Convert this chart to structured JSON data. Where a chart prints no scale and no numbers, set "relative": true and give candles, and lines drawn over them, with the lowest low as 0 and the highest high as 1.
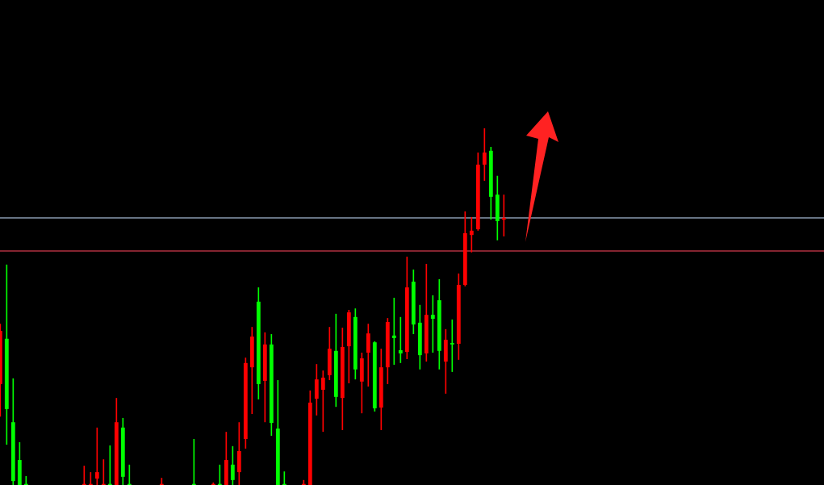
{
  "chart_data": {
    "type": "candlestick",
    "relative": true,
    "categories": [
      null,
      null,
      null,
      null,
      null,
      null,
      null,
      null,
      null,
      null,
      null,
      null,
      null,
      null,
      null,
      null,
      null,
      null,
      null,
      null,
      null,
      null,
      null,
      null,
      null,
      null,
      null,
      null,
      null,
      null,
      null,
      null,
      null,
      null,
      null,
      null,
      null,
      null,
      null,
      null,
      null,
      null,
      null,
      null,
      null,
      null,
      null,
      null,
      null,
      null,
      null,
      null,
      null,
      null,
      null,
      null,
      null,
      null,
      null,
      null,
      null,
      null,
      null,
      null,
      null,
      null,
      null,
      null,
      null,
      null,
      null,
      null,
      null,
      null,
      null,
      null,
      null,
      null,
      null
    ],
    "ohlc": [
      [
        0.283,
        0.452,
        0.192,
        0.432
      ],
      [
        0.41,
        0.618,
        0.113,
        0.213
      ],
      [
        0.176,
        0.299,
        0,
        0.011
      ],
      [
        0.07,
        0.12,
        0,
        0
      ],
      [
        0,
        0.025,
        0,
        0
      ],
      null,
      null,
      null,
      null,
      null,
      null,
      null,
      null,
      [
        0,
        0.054,
        0,
        0
      ],
      [
        0,
        0.036,
        0,
        0
      ],
      [
        0.018,
        0.161,
        0,
        0.036
      ],
      [
        0,
        0.072,
        0,
        0
      ],
      [
        0,
        0.111,
        0,
        0
      ],
      [
        0,
        0.244,
        0,
        0.176
      ],
      [
        0.161,
        0.188,
        0,
        0.023
      ],
      [
        0,
        0.057,
        0,
        0
      ],
      null,
      null,
      null,
      null,
      [
        0,
        0.02,
        0,
        0
      ],
      null,
      null,
      null,
      null,
      [
        0,
        0.129,
        0,
        0
      ],
      null,
      null,
      [
        0,
        0.007,
        0,
        0
      ],
      [
        0,
        0.057,
        0,
        0
      ],
      [
        0,
        0.149,
        0,
        0.07
      ],
      [
        0.057,
        0.109,
        0,
        0.014
      ],
      [
        0.036,
        0.176,
        0,
        0.095
      ],
      [
        0.129,
        0.357,
        0.102,
        0.342
      ],
      [
        0.33,
        0.443,
        0.199,
        0.416
      ],
      [
        0.514,
        0.554,
        0.24,
        0.283
      ],
      [
        0.292,
        0.428,
        0.176,
        0.394
      ],
      [
        0.394,
        0.423,
        0.138,
        0.174
      ],
      [
        0.158,
        0.294,
        0,
        0
      ],
      [
        0,
        0.038,
        0,
        0
      ],
      null,
      null,
      [
        0,
        0.014,
        0,
        0
      ],
      [
        0,
        0.265,
        0,
        0.231
      ],
      [
        0.242,
        0.339,
        0.195,
        0.296
      ],
      [
        0.267,
        0.321,
        0.149,
        0.301
      ],
      [
        0.308,
        0.443,
        0.294,
        0.382
      ],
      [
        0.376,
        0.48,
        0.219,
        0.247
      ],
      [
        0.244,
        0.441,
        0.154,
        0.387
      ],
      [
        0.389,
        0.491,
        0.285,
        0.484
      ],
      [
        0.471,
        0.495,
        0.296,
        0.324
      ],
      [
        0.29,
        0.371,
        0.201,
        0.355
      ],
      [
        0.371,
        0.452,
        0.276,
        0.425
      ],
      [
        0.4,
        0.403,
        0.206,
        0.215
      ],
      [
        0.217,
        0.382,
        0.154,
        0.33
      ],
      [
        0.33,
        0.468,
        0.283,
        0.457
      ],
      [
        0.419,
        0.525,
        0.337,
        0.412
      ],
      [
        0.378,
        0.471,
        0.342,
        0.369
      ],
      [
        0.373,
        0.64,
        0.353,
        0.554
      ],
      [
        0.57,
        0.604,
        0.423,
        0.45
      ],
      [
        0.455,
        0.505,
        0.324,
        0.364
      ],
      [
        0.369,
        0.62,
        0.346,
        0.477
      ],
      [
        0.477,
        0.532,
        0.371,
        0.466
      ],
      [
        0.518,
        0.577,
        0.324,
        0.376
      ],
      [
        0.346,
        0.437,
        0.256,
        0.407
      ],
      [
        0.398,
        0.464,
        0.317,
        0.394
      ],
      [
        0.396,
        0.593,
        0.351,
        0.561
      ],
      [
        0.561,
        0.767,
        0.557,
        0.706
      ],
      [
        0.701,
        0.751,
        0.652,
        0.713
      ],
      [
        0.717,
        0.932,
        0.713,
        0.898
      ],
      [
        0.898,
        1.0,
        0.853,
        0.932
      ],
      [
        0.937,
        0.948,
        0.744,
        0.808
      ],
      [
        0.814,
        0.867,
        0.686,
        0.74
      ],
      [
        0.744,
        0.814,
        0.697,
        0.749
      ]
    ],
    "colors": [
      "#ff0000",
      "#00ff00",
      "#00ff00",
      "#00ff00",
      "#00ff00",
      null,
      null,
      null,
      null,
      null,
      null,
      null,
      null,
      "#ff0000",
      "#ff0000",
      "#ff0000",
      "#ff0000",
      "#00ff00",
      "#ff0000",
      "#00ff00",
      "#00ff00",
      null,
      null,
      null,
      null,
      "#ff0000",
      null,
      null,
      null,
      null,
      "#00ff00",
      null,
      null,
      "#ff0000",
      "#00ff00",
      "#ff0000",
      "#00ff00",
      "#ff0000",
      "#ff0000",
      "#ff0000",
      "#00ff00",
      "#ff0000",
      "#00ff00",
      "#00ff00",
      "#00ff00",
      null,
      null,
      "#ff0000",
      "#ff0000",
      "#ff0000",
      "#ff0000",
      "#ff0000",
      "#00ff00",
      "#ff0000",
      "#ff0000",
      "#00ff00",
      "#ff0000",
      "#ff0000",
      "#00ff00",
      "#ff0000",
      "#ff0000",
      "#00ff00",
      "#00ff00",
      "#ff0000",
      "#00ff00",
      "#00ff00",
      "#ff0000",
      "#00ff00",
      "#00ff00",
      "#ff0000",
      "#00ff00",
      "#ff0000",
      "#ff0000",
      "#ff0000",
      "#ff0000",
      "#ff0000",
      "#00ff00",
      "#00ff00",
      "#ff0000"
    ],
    "ref_lines": [
      {
        "axis": "y",
        "value": 0.749,
        "color": "#8a9bb0"
      },
      {
        "axis": "y",
        "value": 0.656,
        "color": "#b03040"
      }
    ],
    "legend": false
  }
}
